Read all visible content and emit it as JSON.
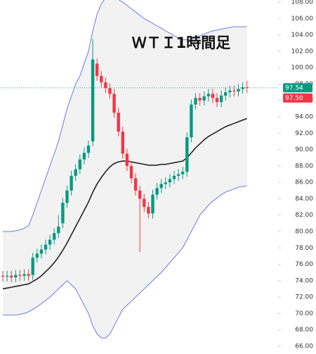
{
  "chart_data": {
    "type": "candlestick",
    "title": "ＷＴＩ1時間足",
    "open": [
      74.6,
      74.5,
      74.6,
      74.4,
      74.7,
      74.6,
      74.8,
      74.7,
      76.8,
      77.3,
      77.8,
      78.4,
      79.0,
      79.8,
      81.0,
      83.5,
      85.0,
      86.8,
      87.6,
      88.8,
      89.6,
      91.0,
      100.5,
      99.0,
      98.2,
      97.5,
      96.8,
      94.5,
      92.2,
      89.5,
      88.0,
      86.5,
      85.0,
      84.0,
      83.0,
      82.2,
      84.5,
      85.3,
      85.8,
      86.0,
      86.4,
      86.8,
      87.0,
      87.3,
      91.5,
      95.5,
      96.3,
      96.0,
      96.5,
      96.8,
      96.3,
      95.8,
      96.6,
      97.0,
      97.2,
      97.1,
      97.4,
      97.6
    ],
    "high": [
      75.2,
      75.2,
      75.2,
      75.3,
      75.3,
      75.4,
      75.4,
      77.4,
      77.9,
      78.4,
      79.0,
      79.6,
      80.4,
      82.0,
      84.1,
      85.6,
      87.4,
      88.2,
      89.4,
      90.2,
      91.1,
      103.5,
      101.1,
      99.6,
      98.8,
      98.1,
      97.4,
      95.1,
      92.8,
      90.1,
      88.6,
      87.1,
      85.6,
      84.6,
      83.6,
      85.1,
      85.9,
      86.4,
      86.6,
      87.0,
      87.4,
      87.6,
      87.9,
      92.1,
      96.1,
      96.9,
      96.9,
      97.1,
      97.4,
      97.4,
      96.9,
      97.2,
      97.6,
      97.8,
      97.8,
      98.0,
      98.2,
      98.4
    ],
    "low": [
      73.9,
      73.9,
      73.8,
      73.8,
      74.0,
      74.0,
      74.0,
      74.1,
      76.2,
      76.7,
      77.2,
      77.8,
      78.4,
      79.2,
      80.4,
      82.9,
      84.4,
      86.2,
      87.0,
      88.2,
      89.0,
      90.4,
      98.4,
      97.6,
      96.9,
      96.2,
      93.9,
      91.6,
      88.9,
      87.4,
      85.9,
      84.4,
      77.5,
      82.4,
      81.6,
      81.6,
      83.9,
      84.7,
      85.2,
      85.4,
      85.8,
      86.2,
      86.4,
      86.7,
      90.9,
      94.9,
      95.4,
      95.4,
      95.9,
      95.7,
      95.2,
      95.2,
      96.0,
      96.4,
      96.5,
      96.5,
      96.8,
      96.9
    ],
    "close": [
      74.5,
      74.6,
      74.4,
      74.7,
      74.6,
      74.8,
      74.6,
      76.8,
      77.3,
      77.8,
      78.4,
      79.0,
      79.8,
      80.6,
      83.5,
      85.0,
      86.8,
      87.6,
      88.8,
      89.6,
      90.5,
      101.0,
      99.0,
      98.2,
      97.5,
      96.8,
      94.5,
      92.2,
      89.5,
      88.0,
      86.5,
      85.0,
      84.0,
      83.0,
      82.2,
      84.5,
      85.3,
      85.8,
      86.0,
      86.4,
      86.8,
      87.0,
      87.3,
      91.5,
      95.5,
      96.3,
      96.0,
      96.5,
      96.8,
      96.3,
      95.8,
      96.6,
      97.0,
      97.2,
      97.1,
      97.4,
      97.6,
      97.54
    ],
    "up_color": "#089981",
    "down_color": "#f23645",
    "lines": [
      {
        "color": "#222222",
        "values": [
          73.0,
          73.1,
          73.2,
          73.3,
          73.4,
          73.5,
          73.6,
          73.9,
          74.2,
          74.6,
          75.1,
          75.6,
          76.2,
          76.9,
          77.7,
          78.6,
          79.6,
          80.6,
          81.6,
          82.6,
          83.6,
          84.8,
          85.8,
          86.6,
          87.3,
          87.9,
          88.3,
          88.5,
          88.6,
          88.6,
          88.5,
          88.4,
          88.3,
          88.2,
          88.1,
          88.1,
          88.1,
          88.2,
          88.2,
          88.3,
          88.4,
          88.5,
          88.6,
          89.0,
          89.6,
          90.2,
          90.7,
          91.2,
          91.6,
          91.9,
          92.2,
          92.5,
          92.8,
          93.0,
          93.2,
          93.4,
          93.6,
          93.8
        ]
      },
      {
        "color": "#5b6ee1",
        "values": [
          80.0,
          80.0,
          80.0,
          80.1,
          80.2,
          80.4,
          80.7,
          82.0,
          83.5,
          85.0,
          86.5,
          88.0,
          89.5,
          91.0,
          93.0,
          95.0,
          96.5,
          98.0,
          99.0,
          100.5,
          102.0,
          104.5,
          106.5,
          107.8,
          108.5,
          108.5,
          108.5,
          108.3,
          108.0,
          107.6,
          107.2,
          106.8,
          106.4,
          106.0,
          105.7,
          105.4,
          105.1,
          104.8,
          104.5,
          104.2,
          103.9,
          103.6,
          103.4,
          103.4,
          103.5,
          103.7,
          103.9,
          104.1,
          104.3,
          104.5,
          104.6,
          104.7,
          104.8,
          104.9,
          105.0,
          105.0,
          105.0,
          105.0
        ]
      },
      {
        "color": "#5b6ee1",
        "values": [
          69.8,
          69.8,
          69.8,
          69.8,
          69.9,
          70.0,
          70.2,
          70.5,
          70.8,
          71.2,
          71.6,
          72.0,
          72.5,
          73.0,
          73.5,
          74.0,
          73.5,
          73.0,
          72.0,
          71.0,
          70.0,
          68.5,
          67.5,
          67.0,
          67.0,
          67.5,
          68.5,
          69.5,
          70.5,
          71.0,
          71.5,
          72.0,
          72.5,
          73.0,
          73.5,
          74.0,
          74.5,
          75.0,
          75.6,
          76.2,
          76.8,
          77.4,
          78.0,
          79.0,
          80.0,
          81.0,
          82.0,
          82.6,
          83.2,
          83.7,
          84.1,
          84.5,
          84.8,
          85.0,
          85.2,
          85.4,
          85.5,
          85.6
        ]
      }
    ],
    "ylim": [
      65.05,
      108.26
    ],
    "yticks": [
      {
        "value": 66,
        "label": "66.00"
      },
      {
        "value": 68,
        "label": "68.00"
      },
      {
        "value": 70,
        "label": "70.00"
      },
      {
        "value": 72,
        "label": "72.00"
      },
      {
        "value": 74,
        "label": "74.00"
      },
      {
        "value": 76,
        "label": "76.00"
      },
      {
        "value": 78,
        "label": "78.00"
      },
      {
        "value": 80,
        "label": "80.00"
      },
      {
        "value": 82,
        "label": "82.00"
      },
      {
        "value": 84,
        "label": "84.00"
      },
      {
        "value": 86,
        "label": "86.00"
      },
      {
        "value": 88,
        "label": "88.00"
      },
      {
        "value": 90,
        "label": "90.00"
      },
      {
        "value": 92,
        "label": "92.00"
      },
      {
        "value": 94,
        "label": "94.00"
      },
      {
        "value": 96,
        "label": "96.00"
      },
      {
        "value": 98,
        "label": "98.00"
      },
      {
        "value": 100,
        "label": "100.00"
      },
      {
        "value": 102,
        "label": "102.00"
      },
      {
        "value": 104,
        "label": "104.00"
      },
      {
        "value": 106,
        "label": "106.00"
      },
      {
        "value": 108,
        "label": "108.00"
      }
    ],
    "grid": false,
    "price_markers": [
      {
        "value": 97.54,
        "label": "97.54",
        "color": "#089981"
      },
      {
        "value": 97.5,
        "label": "97.50",
        "color": "#f23645"
      }
    ]
  }
}
